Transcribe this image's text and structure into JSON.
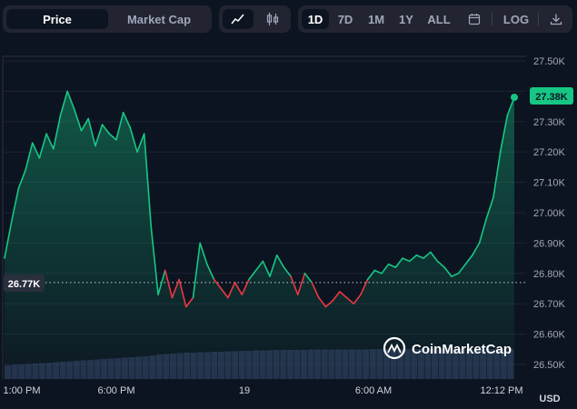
{
  "toolbar": {
    "view_tabs": [
      {
        "label": "Price",
        "active": true
      },
      {
        "label": "Market Cap",
        "active": false
      }
    ],
    "chart_type_icons": [
      "line-chart-icon",
      "candlestick-icon"
    ],
    "ranges": [
      {
        "label": "1D",
        "active": true
      },
      {
        "label": "7D",
        "active": false
      },
      {
        "label": "1M",
        "active": false
      },
      {
        "label": "1Y",
        "active": false
      },
      {
        "label": "ALL",
        "active": false
      }
    ],
    "calendar_icon": "calendar-icon",
    "log_label": "LOG",
    "download_icon": "download-icon"
  },
  "colors": {
    "background": "#0d1421",
    "up": "#16c784",
    "down": "#ea3943",
    "volume": "#3a4670"
  },
  "watermark": "CoinMarketCap",
  "currency": "USD",
  "current_price_label": "27.38K",
  "reference_price_label": "26.77K",
  "chart_data": {
    "type": "line",
    "x_tick_labels": [
      "1:00 PM",
      "6:00 PM",
      "19",
      "6:00 AM",
      "12:12 PM"
    ],
    "y_tick_labels": [
      "27.50K",
      "27.40K",
      "27.30K",
      "27.20K",
      "27.10K",
      "27.00K",
      "26.90K",
      "26.80K",
      "26.70K",
      "26.60K",
      "26.50K"
    ],
    "ylim": [
      26.45,
      27.55
    ],
    "reference_value": 26.77,
    "last_value": 27.38,
    "unit": "K USD",
    "series": [
      {
        "values": [
          26.85,
          26.97,
          27.08,
          27.14,
          27.23,
          27.18,
          27.26,
          27.21,
          27.32,
          27.4,
          27.34,
          27.27,
          27.31,
          27.22,
          27.29,
          27.26,
          27.24,
          27.33,
          27.28,
          27.2,
          27.26,
          26.95,
          26.73,
          26.81,
          26.72,
          26.78,
          26.69,
          26.72,
          26.9,
          26.83,
          26.78,
          26.75,
          26.72,
          26.77,
          26.73,
          26.78,
          26.81,
          26.84,
          26.79,
          26.86,
          26.82,
          26.79,
          26.73,
          26.8,
          26.77,
          26.72,
          26.69,
          26.71,
          26.74,
          26.72,
          26.7,
          26.73,
          26.78,
          26.81,
          26.8,
          26.83,
          26.82,
          26.85,
          26.84,
          26.86,
          26.85,
          26.87,
          26.84,
          26.82,
          26.79,
          26.8,
          26.83,
          26.86,
          26.9,
          26.98,
          27.05,
          27.2,
          27.32,
          27.38
        ]
      }
    ],
    "volume": [
      0.3,
      0.31,
      0.32,
      0.33,
      0.34,
      0.35,
      0.36,
      0.37,
      0.38,
      0.39,
      0.4,
      0.41,
      0.42,
      0.43,
      0.44,
      0.45,
      0.46,
      0.47,
      0.48,
      0.49,
      0.5,
      0.52,
      0.54,
      0.55,
      0.56,
      0.57,
      0.58,
      0.58,
      0.59,
      0.59,
      0.6,
      0.6,
      0.61,
      0.61,
      0.62,
      0.62,
      0.63,
      0.63,
      0.63,
      0.64,
      0.64,
      0.64,
      0.64,
      0.64,
      0.65,
      0.65,
      0.65,
      0.65,
      0.65,
      0.65,
      0.65,
      0.65,
      0.65,
      0.66,
      0.66,
      0.66,
      0.66,
      0.66,
      0.66,
      0.66,
      0.66,
      0.66,
      0.66,
      0.66,
      0.66,
      0.66,
      0.66,
      0.66,
      0.66,
      0.66,
      0.66,
      0.66,
      0.66,
      0.66
    ]
  }
}
